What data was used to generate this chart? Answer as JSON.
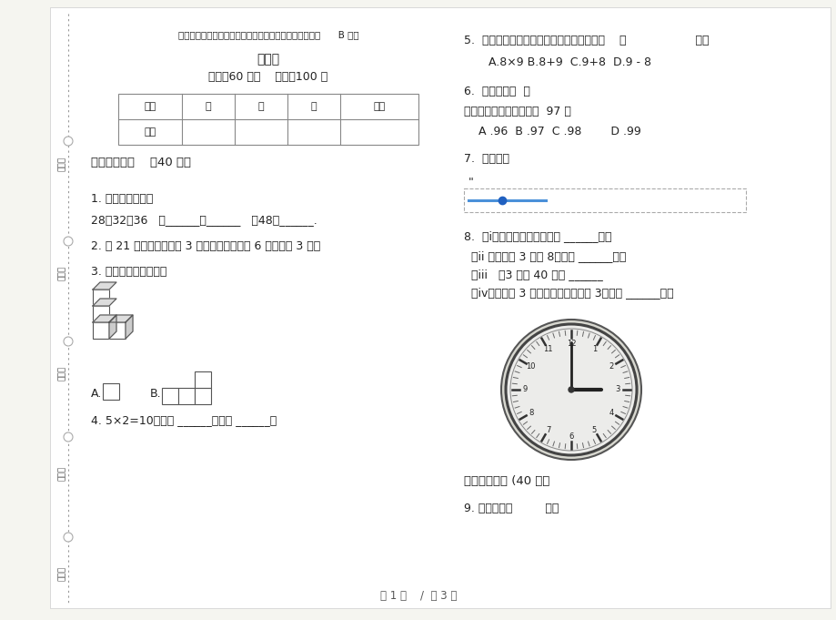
{
  "bg_color": "#f5f5f0",
  "paper_bg": "#ffffff",
  "title_line1": "部编版综合试题精选二年级上学期小学数学期末模拟试卷      B 卷课",
  "title_line2": "后练习",
  "title_line3": "时间：60 分钟    满分：100 分",
  "table_headers": [
    "题号",
    "一",
    "二",
    "三",
    "总分"
  ],
  "table_row2": [
    "得分",
    "",
    "",
    "",
    ""
  ],
  "left_margin_labels": [
    "考号：",
    "考场：",
    "姓名：",
    "班级：",
    "学校："
  ],
  "section1_title": "一、基础练习    （40 分）",
  "q1": "1. 按规律填一填。",
  "q1_content": "28，32，36   ，______，______   ，48，______.",
  "q2": "2. 把 21 个苹果平均分给 3 个同学，每人分到 6 个，还剩 3 个。",
  "q3": "3. 从侧面看到的是（）",
  "q3_optA": "A.",
  "q3_optB": "B.",
  "q4": "4. 5×2=10，读作 ______，表示 ______。",
  "q5": "5.  用八九七十二这句口诀可以计算的算式是    （                   ）。",
  "q5_opts": "   A.8×9 B.8+9  C.9+8  D.9 - 8",
  "q6": "6.  我是几？（  ）",
  "q6_content": "我不是最大两位数，我比  97 大",
  "q6_opts": "    A .96  B .97  C .98        D .99",
  "q7": "7.  判断对错",
  "q7_quote": "「",
  "q8": "8.  （i）图中钟面上的时间是 ______时。",
  "q8ii": "（ii ）时针从 3 走到 8，走了 ______时。",
  "q8iii": "（iii   ）3 时过 40 分是 ______",
  "q8iv": "（iv）时针从 3 开始绕一圈又走回到 3，走了 ______时。",
  "section2_title": "二、综合练习 (40 分）",
  "q9": "9. 手掌宽约（         ）。",
  "footer": "第 1 页    /  共 3 页",
  "text_color": "#222222",
  "gray_text": "#888888"
}
